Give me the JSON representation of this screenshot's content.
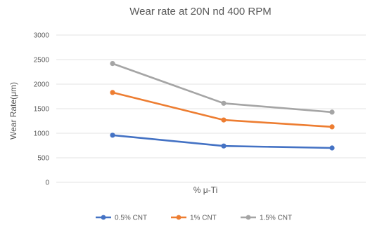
{
  "chart_data": {
    "type": "line",
    "title": "Wear rate at 20N nd 400 RPM",
    "xlabel": "% μ-Ti",
    "ylabel": "Wear Rate(μm)",
    "ylim": [
      0,
      3000
    ],
    "yticks": [
      0,
      500,
      1000,
      1500,
      2000,
      2500,
      3000
    ],
    "x": [
      1,
      2,
      3
    ],
    "grid": true,
    "legend_position": "bottom",
    "series": [
      {
        "name": "0.5% CNT",
        "color": "#4472C4",
        "values": [
          960,
          740,
          700
        ]
      },
      {
        "name": "1% CNT",
        "color": "#ED7D31",
        "values": [
          1830,
          1270,
          1130
        ]
      },
      {
        "name": "1.5% CNT",
        "color": "#A5A5A5",
        "values": [
          2420,
          1610,
          1430
        ]
      }
    ]
  }
}
